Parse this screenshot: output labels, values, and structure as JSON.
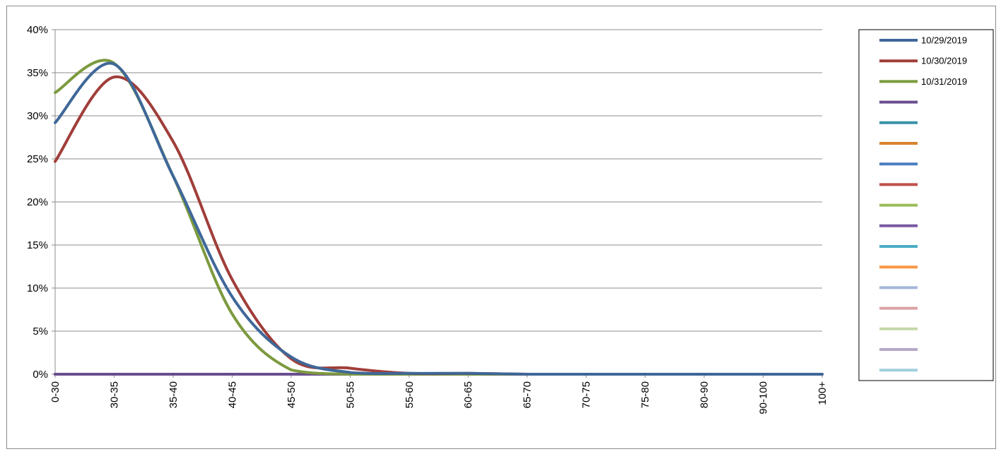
{
  "chart_data": {
    "type": "line",
    "categories": [
      "0-30",
      "30-35",
      "35-40",
      "40-45",
      "45-50",
      "50-55",
      "55-60",
      "60-65",
      "65-70",
      "70-75",
      "75-80",
      "80-90",
      "90-100",
      "100+"
    ],
    "y_ticks": [
      "0%",
      "5%",
      "10%",
      "15%",
      "20%",
      "25%",
      "30%",
      "35%",
      "40%"
    ],
    "ylim": [
      0,
      40
    ],
    "grid": true,
    "legend_position": "right",
    "series": [
      {
        "name": "10/29/2019",
        "color": "#3f6799",
        "values": [
          29.2,
          36.0,
          23.0,
          9.0,
          2.0,
          0.2,
          0.1,
          0.1,
          0.0,
          0.0,
          0.0,
          0.0,
          0.0,
          0.0
        ]
      },
      {
        "name": "10/30/2019",
        "color": "#a03e3a",
        "values": [
          24.7,
          34.5,
          27.0,
          11.0,
          1.8,
          0.7,
          0.1,
          0.1,
          0.0,
          0.0,
          0.0,
          0.0,
          0.0,
          0.0
        ]
      },
      {
        "name": "10/31/2019",
        "color": "#7c9a3e",
        "values": [
          32.7,
          36.1,
          23.0,
          7.0,
          0.5,
          0.0,
          0.0,
          0.0,
          0.0,
          0.0,
          0.0,
          0.0,
          0.0,
          0.0
        ]
      },
      {
        "name": "",
        "color": "#6a4e8f",
        "values": [
          0,
          0,
          0,
          0,
          0,
          0,
          0,
          0,
          0,
          0,
          0,
          0,
          0,
          0
        ]
      },
      {
        "name": "",
        "color": "#3a93a8",
        "values": [
          0,
          0,
          0,
          0,
          0,
          0,
          0,
          0,
          0,
          0,
          0,
          0,
          0,
          0
        ]
      },
      {
        "name": "",
        "color": "#d7822f",
        "values": [
          0,
          0,
          0,
          0,
          0,
          0,
          0,
          0,
          0,
          0,
          0,
          0,
          0,
          0
        ]
      },
      {
        "name": "",
        "color": "#4a7ebf",
        "values": [
          0,
          0,
          0,
          0,
          0,
          0,
          0,
          0,
          0,
          0,
          0,
          0,
          0,
          0
        ]
      },
      {
        "name": "",
        "color": "#c0504d",
        "values": [
          0,
          0,
          0,
          0,
          0,
          0,
          0,
          0,
          0,
          0,
          0,
          0,
          0,
          0
        ]
      },
      {
        "name": "",
        "color": "#9bbb59",
        "values": [
          0,
          0,
          0,
          0,
          0,
          0,
          0,
          0,
          0,
          0,
          0,
          0,
          0,
          0
        ]
      },
      {
        "name": "",
        "color": "#7a5aa3",
        "values": [
          0,
          0,
          0,
          0,
          0,
          0,
          0,
          0,
          0,
          0,
          0,
          0,
          0,
          0
        ]
      },
      {
        "name": "",
        "color": "#4bacc6",
        "values": [
          0,
          0,
          0,
          0,
          0,
          0,
          0,
          0,
          0,
          0,
          0,
          0,
          0,
          0
        ]
      },
      {
        "name": "",
        "color": "#f79646",
        "values": [
          0,
          0,
          0,
          0,
          0,
          0,
          0,
          0,
          0,
          0,
          0,
          0,
          0,
          0
        ]
      },
      {
        "name": "",
        "color": "#a5b6d8",
        "values": [
          0,
          0,
          0,
          0,
          0,
          0,
          0,
          0,
          0,
          0,
          0,
          0,
          0,
          0
        ]
      },
      {
        "name": "",
        "color": "#d9a3a4",
        "values": [
          0,
          0,
          0,
          0,
          0,
          0,
          0,
          0,
          0,
          0,
          0,
          0,
          0,
          0
        ]
      },
      {
        "name": "",
        "color": "#c4d8a8",
        "values": [
          0,
          0,
          0,
          0,
          0,
          0,
          0,
          0,
          0,
          0,
          0,
          0,
          0,
          0
        ]
      },
      {
        "name": "",
        "color": "#b6a8c9",
        "values": [
          0,
          0,
          0,
          0,
          0,
          0,
          0,
          0,
          0,
          0,
          0,
          0,
          0,
          0
        ]
      },
      {
        "name": "",
        "color": "#9fcfdc",
        "values": [
          0,
          0,
          0,
          0,
          0,
          0,
          0,
          0,
          0,
          0,
          0,
          0,
          0,
          0
        ]
      }
    ]
  }
}
